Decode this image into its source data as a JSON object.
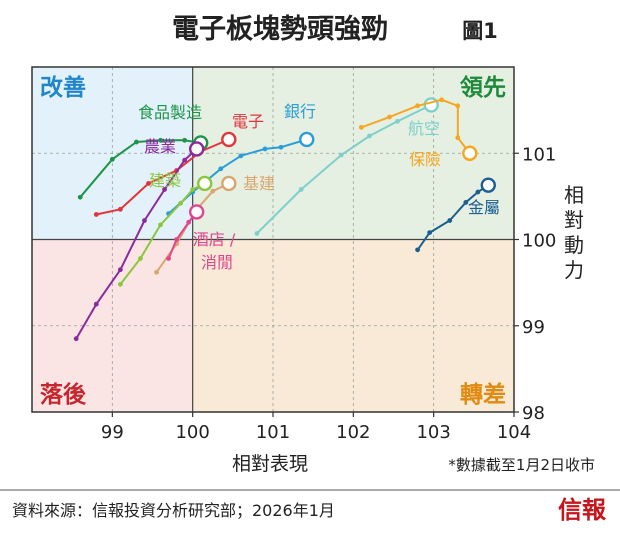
{
  "title": "電子板塊勢頭強勁",
  "figure_label": "圖1",
  "footnote": "*數據截至1月2日收市",
  "source": "資料來源：信報投資分析研究部；2026年1月",
  "brand": "信報",
  "colors": {
    "improving_bg": "#e3f1fb",
    "leading_bg": "#e6f0e2",
    "lagging_bg": "#fae5e4",
    "weakening_bg": "#f8ead6",
    "improving_text": "#1f86c8",
    "leading_text": "#1f8a3a",
    "lagging_text": "#c6262e",
    "weakening_text": "#e08a10",
    "brand": "#c4161c"
  },
  "chart_data": {
    "type": "scatter",
    "xlabel": "相對表現",
    "ylabel": "相對動力",
    "xlim": [
      98.0,
      104.0
    ],
    "ylim": [
      98.0,
      102.0
    ],
    "xticks": [
      "99",
      "100",
      "101",
      "102",
      "103",
      "104"
    ],
    "yticks": [
      "98",
      "99",
      "100",
      "101"
    ],
    "grid": true,
    "quadrants": {
      "top_left": "改善",
      "top_right": "領先",
      "bottom_left": "落後",
      "bottom_right": "轉差"
    },
    "series": [
      {
        "name": "食品製造",
        "color": "#1e9448",
        "x": [
          98.6,
          99.0,
          99.3,
          99.6,
          99.9,
          100.1
        ],
        "y": [
          100.49,
          100.93,
          101.13,
          101.15,
          101.15,
          101.12
        ]
      },
      {
        "name": "電子",
        "color": "#e3343b",
        "x": [
          98.8,
          99.1,
          99.45,
          99.8,
          100.1,
          100.45
        ],
        "y": [
          100.29,
          100.35,
          100.65,
          100.8,
          101.02,
          101.16
        ]
      },
      {
        "name": "農業",
        "color": "#8a2a9c",
        "x": [
          98.55,
          98.8,
          99.1,
          99.4,
          99.65,
          99.9,
          100.05
        ],
        "y": [
          98.85,
          99.25,
          99.65,
          100.22,
          100.58,
          100.92,
          101.05
        ]
      },
      {
        "name": "銀行",
        "color": "#2a9dd9",
        "x": [
          99.7,
          100.0,
          100.35,
          100.6,
          100.9,
          101.1,
          101.42
        ],
        "y": [
          100.3,
          100.55,
          100.82,
          100.97,
          101.05,
          101.07,
          101.16
        ]
      },
      {
        "name": "建築",
        "color": "#8cc63f",
        "x": [
          99.1,
          99.35,
          99.6,
          99.85,
          100.0,
          100.15
        ],
        "y": [
          99.48,
          99.78,
          100.17,
          100.42,
          100.58,
          100.65
        ]
      },
      {
        "name": "基建",
        "color": "#d9a66e",
        "x": [
          99.55,
          99.8,
          100.05,
          100.25,
          100.45
        ],
        "y": [
          99.62,
          99.95,
          100.35,
          100.56,
          100.65
        ]
      },
      {
        "name": "酒店/消閒",
        "color": "#e0468e",
        "x": [
          99.7,
          99.8,
          99.95,
          100.05
        ],
        "y": [
          99.78,
          100.0,
          100.2,
          100.32
        ]
      },
      {
        "name": "航空",
        "color": "#7fcfca",
        "x": [
          100.8,
          101.35,
          101.85,
          102.2,
          102.55,
          102.97
        ],
        "y": [
          100.07,
          100.58,
          100.98,
          101.2,
          101.37,
          101.56
        ]
      },
      {
        "name": "保險",
        "color": "#f5a623",
        "x": [
          102.1,
          102.45,
          102.8,
          103.1,
          103.3,
          103.3,
          103.45
        ],
        "y": [
          101.3,
          101.42,
          101.55,
          101.62,
          101.55,
          101.18,
          101.0
        ]
      },
      {
        "name": "金屬",
        "color": "#1b5f8f",
        "x": [
          102.8,
          102.95,
          103.2,
          103.4,
          103.55,
          103.68
        ],
        "y": [
          99.88,
          100.08,
          100.22,
          100.43,
          100.55,
          100.63
        ]
      }
    ],
    "labels": [
      {
        "series": "食品製造",
        "text": "食品製造"
      },
      {
        "series": "電子",
        "text": "電子"
      },
      {
        "series": "農業",
        "text": "農業"
      },
      {
        "series": "銀行",
        "text": "銀行"
      },
      {
        "series": "建築",
        "text": "建築"
      },
      {
        "series": "基建",
        "text": "基建"
      },
      {
        "series": "酒店/消閒",
        "text": "酒店 /"
      },
      {
        "series": "酒店/消閒",
        "text": "消閒"
      },
      {
        "series": "航空",
        "text": "航空"
      },
      {
        "series": "保險",
        "text": "保險"
      },
      {
        "series": "金屬",
        "text": "金屬"
      }
    ]
  }
}
